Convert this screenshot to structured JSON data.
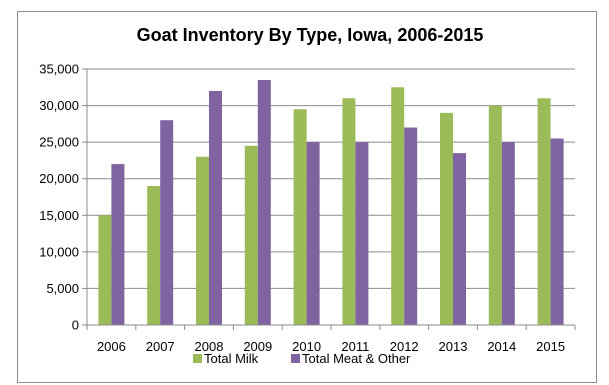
{
  "chart_data": {
    "type": "bar",
    "title": "Goat Inventory By Type, Iowa, 2006-2015",
    "xlabel": "",
    "ylabel": "",
    "categories": [
      "2006",
      "2007",
      "2008",
      "2009",
      "2010",
      "2011",
      "2012",
      "2013",
      "2014",
      "2015"
    ],
    "series": [
      {
        "name": "Total Milk",
        "color": "#9bbb59",
        "values": [
          15000,
          19000,
          23000,
          24500,
          29500,
          31000,
          32500,
          29000,
          30000,
          31000
        ]
      },
      {
        "name": "Total Meat & Other",
        "color": "#8064a2",
        "values": [
          22000,
          28000,
          32000,
          33500,
          25000,
          25000,
          27000,
          23500,
          25000,
          25500
        ]
      }
    ],
    "ylim": [
      0,
      35000
    ],
    "yticks": [
      "0",
      "5,000",
      "10,000",
      "15,000",
      "20,000",
      "25,000",
      "30,000",
      "35,000"
    ],
    "ytick_values": [
      0,
      5000,
      10000,
      15000,
      20000,
      25000,
      30000,
      35000
    ],
    "grid": true,
    "legend_position": "bottom"
  }
}
